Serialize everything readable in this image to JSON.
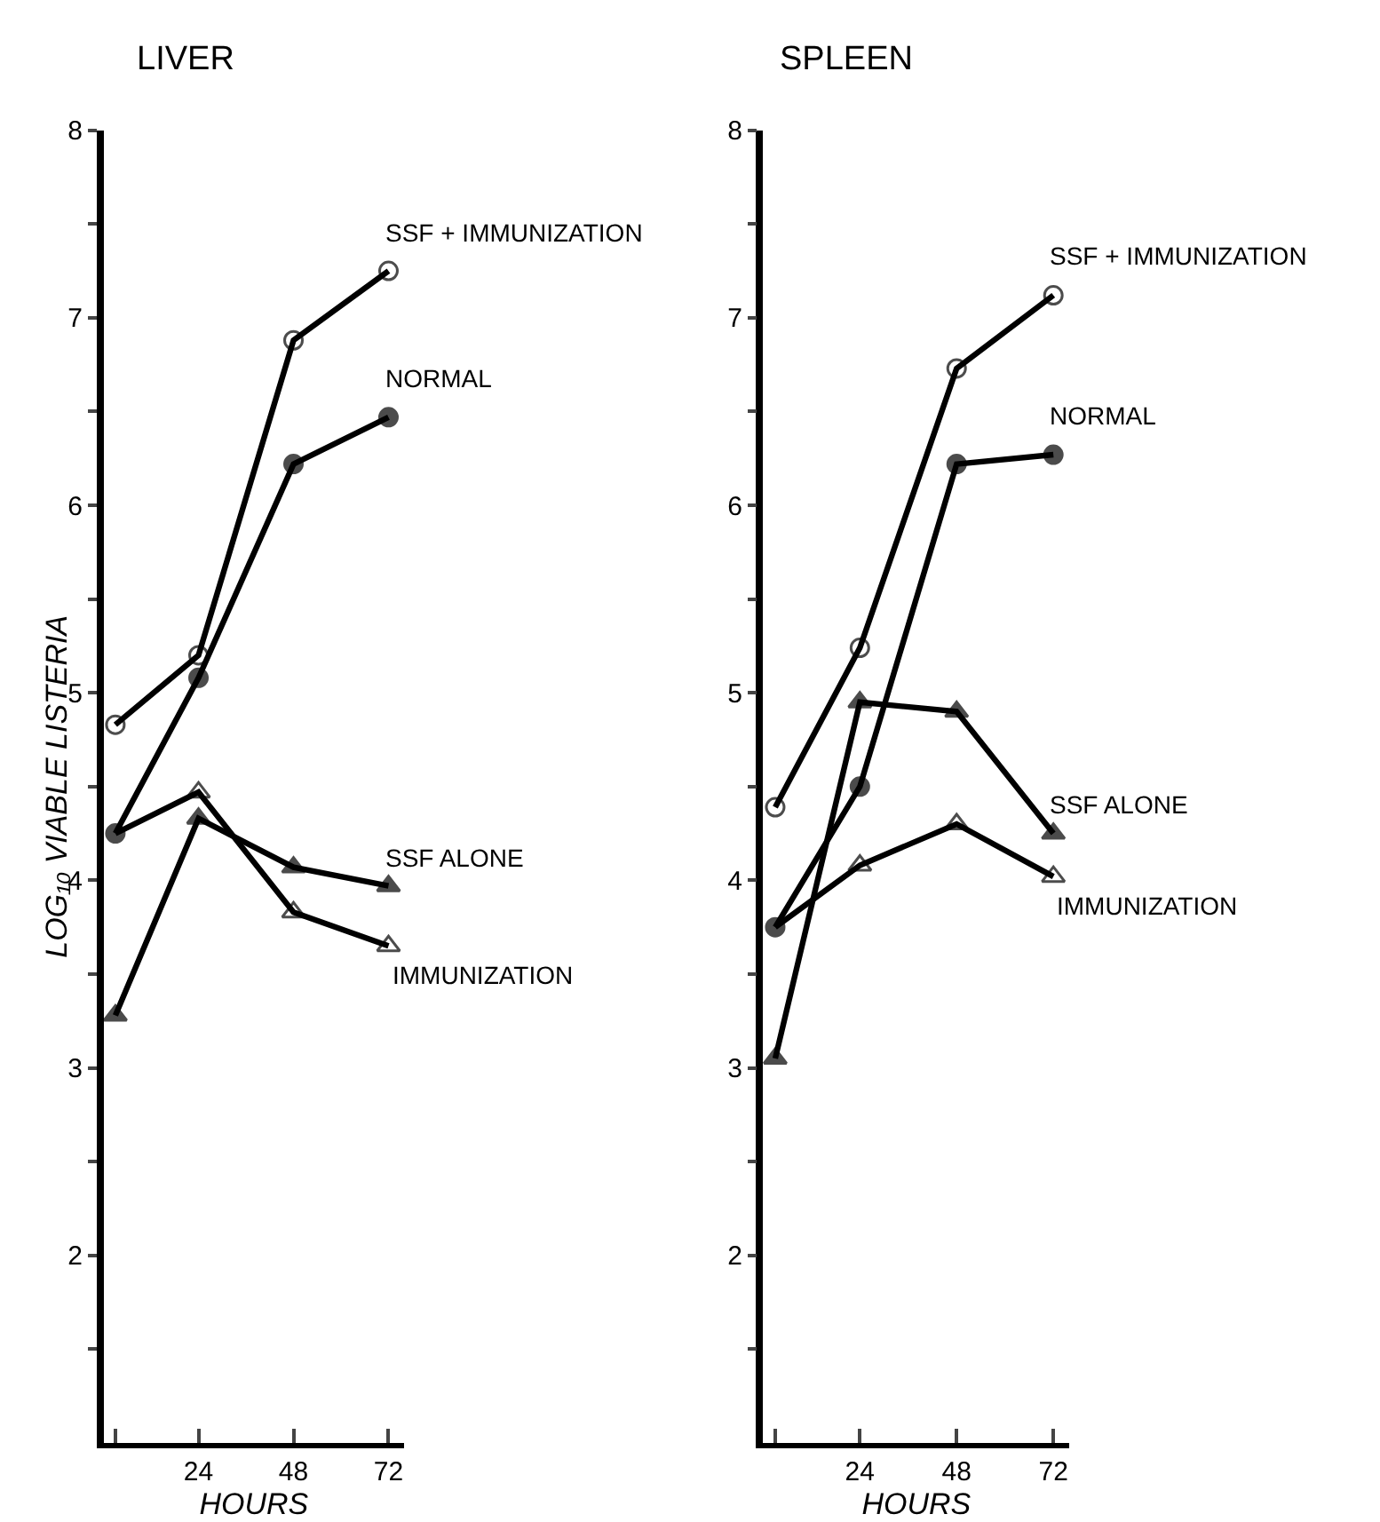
{
  "chart_data": [
    {
      "type": "line",
      "title": "LIVER",
      "xlabel": "HOURS",
      "ylabel": "LOG₁₀ VIABLE LISTERIA",
      "x": [
        3,
        24,
        48,
        72
      ],
      "xlim": [
        0,
        76
      ],
      "xticks": [
        {
          "value": 3,
          "label": null
        },
        24,
        48,
        72
      ],
      "ylim": [
        1,
        8
      ],
      "yticks": [
        {
          "value": 1.5,
          "label": null
        },
        2,
        {
          "value": 2.5,
          "label": null
        },
        3,
        {
          "value": 3.5,
          "label": null
        },
        4,
        {
          "value": 4.5,
          "label": null
        },
        5,
        {
          "value": 5.5,
          "label": null
        },
        6,
        {
          "value": 6.5,
          "label": null
        },
        7,
        {
          "value": 7.5,
          "label": null
        },
        8
      ],
      "line_style": "solid",
      "series": [
        {
          "name": "SSF + IMMUNIZATION",
          "color": "#000000",
          "marker": "circle",
          "values": [
            4.83,
            5.2,
            6.88,
            7.25
          ]
        },
        {
          "name": "NORMAL",
          "color": "#000000",
          "marker": "circle",
          "values": [
            4.25,
            5.08,
            6.22,
            6.47
          ]
        },
        {
          "name": "SSF ALONE",
          "color": "#000000",
          "marker": "triangle",
          "values": [
            3.28,
            4.33,
            4.07,
            3.97
          ]
        },
        {
          "name": "IMMUNIZATION",
          "color": "#000000",
          "marker": "triangle",
          "values": [
            4.25,
            4.47,
            3.83,
            3.65
          ]
        }
      ]
    },
    {
      "type": "line",
      "title": "SPLEEN",
      "xlabel": "HOURS",
      "x": [
        3,
        24,
        48,
        72
      ],
      "xlim": [
        0,
        76
      ],
      "xticks": [
        {
          "value": 3,
          "label": null
        },
        24,
        48,
        72
      ],
      "ylim": [
        1,
        8
      ],
      "yticks": [
        {
          "value": 1.5,
          "label": null
        },
        2,
        {
          "value": 2.5,
          "label": null
        },
        3,
        {
          "value": 3.5,
          "label": null
        },
        4,
        {
          "value": 4.5,
          "label": null
        },
        5,
        {
          "value": 5.5,
          "label": null
        },
        6,
        {
          "value": 6.5,
          "label": null
        },
        7,
        {
          "value": 7.5,
          "label": null
        },
        8
      ],
      "line_style": "solid",
      "series": [
        {
          "name": "SSF + IMMUNIZATION",
          "color": "#000000",
          "marker": "circle",
          "values": [
            4.39,
            5.24,
            6.73,
            7.12
          ]
        },
        {
          "name": "NORMAL",
          "color": "#000000",
          "marker": "circle",
          "values": [
            3.75,
            4.5,
            6.22,
            6.27
          ]
        },
        {
          "name": "SSF ALONE",
          "color": "#000000",
          "marker": "triangle",
          "values": [
            3.05,
            4.95,
            4.9,
            4.25
          ]
        },
        {
          "name": "IMMUNIZATION",
          "color": "#000000",
          "marker": "triangle",
          "values": [
            3.75,
            4.08,
            4.3,
            4.02
          ]
        }
      ]
    }
  ]
}
